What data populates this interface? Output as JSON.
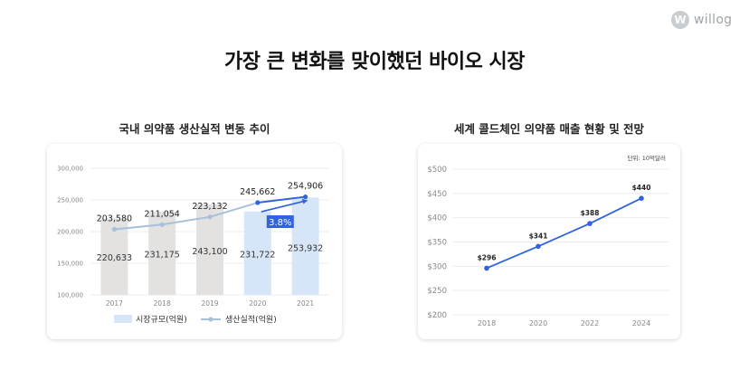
{
  "brand": {
    "name": "willog",
    "mark": "W"
  },
  "title": "가장 큰 변화를 맞이했던 바이오 시장",
  "chart_data": [
    {
      "type": "bar",
      "title": "국내 의약품 생산실적 변동 추이",
      "categories": [
        "2017",
        "2018",
        "2019",
        "2020",
        "2021"
      ],
      "yticks": [
        "100,000",
        "150,000",
        "200,000",
        "250,000",
        "300,000"
      ],
      "ylim": [
        100000,
        300000
      ],
      "grid": true,
      "legend_position": "bottom",
      "series": [
        {
          "name": "시장규모(억원)",
          "type": "bar",
          "values": [
            220633,
            231175,
            243100,
            231722,
            253932
          ],
          "labels": [
            "220,633",
            "231,175",
            "243,100",
            "231,722",
            "253,932"
          ]
        },
        {
          "name": "생산실적(억원)",
          "type": "line",
          "values": [
            203580,
            211054,
            223132,
            245662,
            254906
          ],
          "labels": [
            "203,580",
            "211,054",
            "223,132",
            "245,662",
            "254,906"
          ]
        }
      ],
      "annotation": "3.8%",
      "colors": {
        "bar": "#e3e2e1",
        "bar_highlight": "#d6e6f8",
        "line": "#a8c1da",
        "line_highlight": "#2f63e0",
        "badge": "#2f63e0"
      }
    },
    {
      "type": "line",
      "title": "세계 콜드체인 의약품 매출 현황 및 전망",
      "unit_label": "단위: 10억달러",
      "x": [
        "2018",
        "2020",
        "2022",
        "2024"
      ],
      "yticks": [
        "$200",
        "$250",
        "$300",
        "$350",
        "$400",
        "$450",
        "$500"
      ],
      "ylim": [
        200,
        500
      ],
      "grid": true,
      "series": [
        {
          "values": [
            296,
            341,
            388,
            440
          ],
          "labels": [
            "$296",
            "$341",
            "$388",
            "$440"
          ]
        }
      ],
      "colors": {
        "line": "#2f63e0"
      }
    }
  ]
}
